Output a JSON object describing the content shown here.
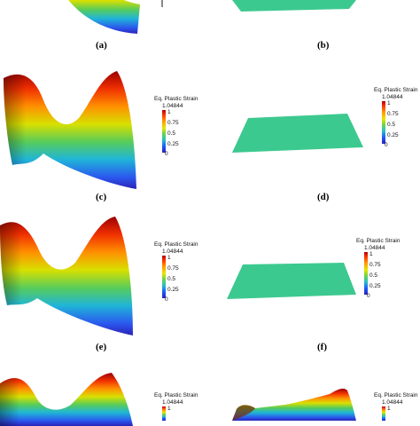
{
  "figure": {
    "captions": {
      "a": "(a)",
      "b": "(b)",
      "c": "(c)",
      "d": "(d)",
      "e": "(e)",
      "f": "(f)"
    },
    "colorbar": {
      "title": "Eq. Plastic Strain",
      "max": "1.04844",
      "ticks": [
        "1",
        "0.75",
        "0.5",
        "0.25",
        "0"
      ]
    },
    "colors": {
      "flat_plate": "#3cc98f",
      "gradient_top": "#b40000",
      "gradient_bottom": "#2a22b8"
    }
  }
}
